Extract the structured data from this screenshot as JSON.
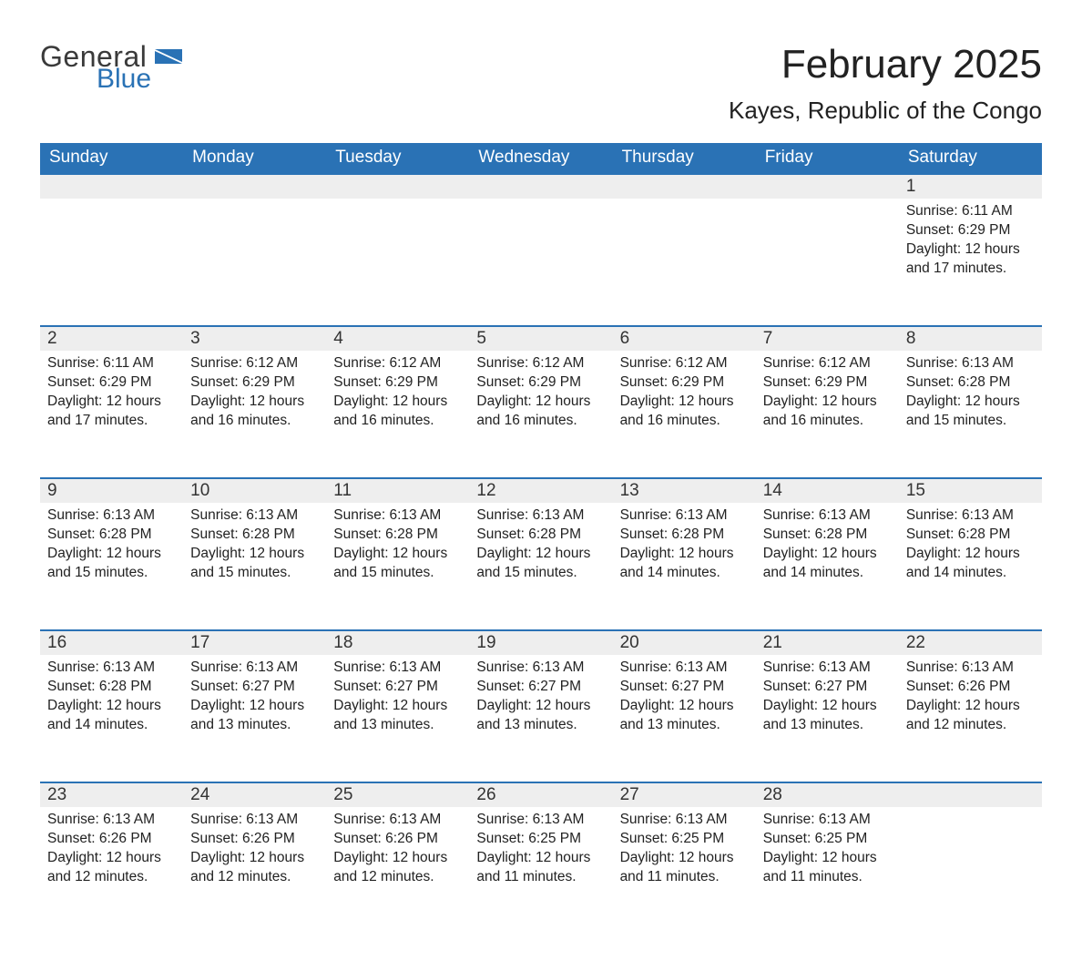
{
  "logo": {
    "line1": "General",
    "line2": "Blue",
    "icon_color": "#2a72b5",
    "text_color_1": "#3a3a3a",
    "text_color_2": "#2a72b5"
  },
  "title": {
    "month": "February 2025",
    "location": "Kayes, Republic of the Congo"
  },
  "colors": {
    "header_bg": "#2a72b5",
    "header_fg": "#ffffff",
    "daynum_bg": "#eeeeee",
    "row_border": "#2a72b5",
    "body_bg": "#ffffff",
    "text": "#222222"
  },
  "typography": {
    "font_family": "Segoe UI, Arial, sans-serif",
    "month_size": 44,
    "location_size": 26,
    "header_size": 19,
    "daynum_size": 19,
    "body_size": 15.5
  },
  "layout": {
    "columns": 7,
    "first_day_column_index": 6,
    "days_in_month": 28
  },
  "weekdays": [
    "Sunday",
    "Monday",
    "Tuesday",
    "Wednesday",
    "Thursday",
    "Friday",
    "Saturday"
  ],
  "labels": {
    "sunrise": "Sunrise:",
    "sunset": "Sunset:",
    "daylight": "Daylight:"
  },
  "days": [
    {
      "n": 1,
      "sunrise": "6:11 AM",
      "sunset": "6:29 PM",
      "daylight": "12 hours and 17 minutes."
    },
    {
      "n": 2,
      "sunrise": "6:11 AM",
      "sunset": "6:29 PM",
      "daylight": "12 hours and 17 minutes."
    },
    {
      "n": 3,
      "sunrise": "6:12 AM",
      "sunset": "6:29 PM",
      "daylight": "12 hours and 16 minutes."
    },
    {
      "n": 4,
      "sunrise": "6:12 AM",
      "sunset": "6:29 PM",
      "daylight": "12 hours and 16 minutes."
    },
    {
      "n": 5,
      "sunrise": "6:12 AM",
      "sunset": "6:29 PM",
      "daylight": "12 hours and 16 minutes."
    },
    {
      "n": 6,
      "sunrise": "6:12 AM",
      "sunset": "6:29 PM",
      "daylight": "12 hours and 16 minutes."
    },
    {
      "n": 7,
      "sunrise": "6:12 AM",
      "sunset": "6:29 PM",
      "daylight": "12 hours and 16 minutes."
    },
    {
      "n": 8,
      "sunrise": "6:13 AM",
      "sunset": "6:28 PM",
      "daylight": "12 hours and 15 minutes."
    },
    {
      "n": 9,
      "sunrise": "6:13 AM",
      "sunset": "6:28 PM",
      "daylight": "12 hours and 15 minutes."
    },
    {
      "n": 10,
      "sunrise": "6:13 AM",
      "sunset": "6:28 PM",
      "daylight": "12 hours and 15 minutes."
    },
    {
      "n": 11,
      "sunrise": "6:13 AM",
      "sunset": "6:28 PM",
      "daylight": "12 hours and 15 minutes."
    },
    {
      "n": 12,
      "sunrise": "6:13 AM",
      "sunset": "6:28 PM",
      "daylight": "12 hours and 15 minutes."
    },
    {
      "n": 13,
      "sunrise": "6:13 AM",
      "sunset": "6:28 PM",
      "daylight": "12 hours and 14 minutes."
    },
    {
      "n": 14,
      "sunrise": "6:13 AM",
      "sunset": "6:28 PM",
      "daylight": "12 hours and 14 minutes."
    },
    {
      "n": 15,
      "sunrise": "6:13 AM",
      "sunset": "6:28 PM",
      "daylight": "12 hours and 14 minutes."
    },
    {
      "n": 16,
      "sunrise": "6:13 AM",
      "sunset": "6:28 PM",
      "daylight": "12 hours and 14 minutes."
    },
    {
      "n": 17,
      "sunrise": "6:13 AM",
      "sunset": "6:27 PM",
      "daylight": "12 hours and 13 minutes."
    },
    {
      "n": 18,
      "sunrise": "6:13 AM",
      "sunset": "6:27 PM",
      "daylight": "12 hours and 13 minutes."
    },
    {
      "n": 19,
      "sunrise": "6:13 AM",
      "sunset": "6:27 PM",
      "daylight": "12 hours and 13 minutes."
    },
    {
      "n": 20,
      "sunrise": "6:13 AM",
      "sunset": "6:27 PM",
      "daylight": "12 hours and 13 minutes."
    },
    {
      "n": 21,
      "sunrise": "6:13 AM",
      "sunset": "6:27 PM",
      "daylight": "12 hours and 13 minutes."
    },
    {
      "n": 22,
      "sunrise": "6:13 AM",
      "sunset": "6:26 PM",
      "daylight": "12 hours and 12 minutes."
    },
    {
      "n": 23,
      "sunrise": "6:13 AM",
      "sunset": "6:26 PM",
      "daylight": "12 hours and 12 minutes."
    },
    {
      "n": 24,
      "sunrise": "6:13 AM",
      "sunset": "6:26 PM",
      "daylight": "12 hours and 12 minutes."
    },
    {
      "n": 25,
      "sunrise": "6:13 AM",
      "sunset": "6:26 PM",
      "daylight": "12 hours and 12 minutes."
    },
    {
      "n": 26,
      "sunrise": "6:13 AM",
      "sunset": "6:25 PM",
      "daylight": "12 hours and 11 minutes."
    },
    {
      "n": 27,
      "sunrise": "6:13 AM",
      "sunset": "6:25 PM",
      "daylight": "12 hours and 11 minutes."
    },
    {
      "n": 28,
      "sunrise": "6:13 AM",
      "sunset": "6:25 PM",
      "daylight": "12 hours and 11 minutes."
    }
  ]
}
